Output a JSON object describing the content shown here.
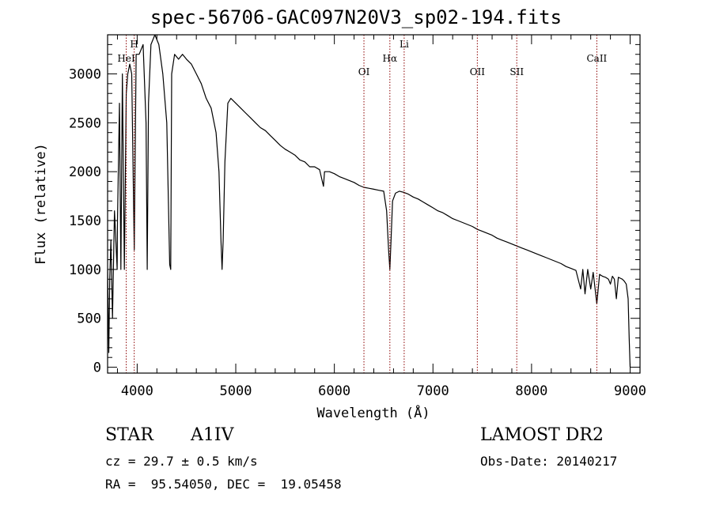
{
  "title": "spec-56706-GAC097N20V3_sp02-194.fits",
  "info": {
    "object_class": "STAR",
    "subclass": "A1IV",
    "survey": "LAMOST DR2",
    "redshift_text": "cz = 29.7 ± 0.5 km/s",
    "obs_date_text": "Obs-Date: 20140217",
    "coords_text": "RA =  95.54050, DEC =  19.05458"
  },
  "chart_data": {
    "type": "line",
    "title": "spec-56706-GAC097N20V3_sp02-194.fits",
    "xlabel": "Wavelength (Å)",
    "ylabel": "Flux (relative)",
    "xlim": [
      3700,
      9100
    ],
    "ylim": [
      -60,
      3400
    ],
    "xticks": [
      4000,
      5000,
      6000,
      7000,
      8000,
      9000
    ],
    "yticks": [
      0,
      500,
      1000,
      1500,
      2000,
      2500,
      3000
    ],
    "grid": false,
    "legend": "none",
    "line_color": "#000000",
    "marker_color": "#8b0000",
    "series": [
      {
        "x": [
          3700,
          3712,
          3722,
          3734,
          3750,
          3770,
          3797,
          3800,
          3820,
          3835,
          3850,
          3870,
          3889,
          3905,
          3925,
          3945,
          3970,
          3990,
          4020,
          4060,
          4090,
          4102,
          4115,
          4140,
          4180,
          4220,
          4260,
          4300,
          4330,
          4340,
          4350,
          4380,
          4420,
          4460,
          4500,
          4550,
          4600,
          4650,
          4700,
          4750,
          4800,
          4830,
          4850,
          4861,
          4872,
          4890,
          4920,
          4950,
          5000,
          5050,
          5100,
          5150,
          5200,
          5250,
          5300,
          5350,
          5400,
          5450,
          5500,
          5550,
          5600,
          5650,
          5700,
          5750,
          5800,
          5850,
          5890,
          5900,
          5950,
          6000,
          6050,
          6100,
          6150,
          6200,
          6250,
          6300,
          6350,
          6400,
          6450,
          6500,
          6530,
          6550,
          6563,
          6575,
          6590,
          6620,
          6660,
          6700,
          6750,
          6800,
          6850,
          6900,
          6950,
          7000,
          7050,
          7100,
          7150,
          7200,
          7250,
          7300,
          7350,
          7400,
          7450,
          7500,
          7550,
          7600,
          7650,
          7700,
          7750,
          7800,
          7850,
          7900,
          7950,
          8000,
          8050,
          8100,
          8150,
          8200,
          8250,
          8300,
          8350,
          8400,
          8450,
          8498,
          8520,
          8542,
          8570,
          8600,
          8625,
          8662,
          8690,
          8720,
          8750,
          8780,
          8800,
          8820,
          8840,
          8860,
          8880,
          8900,
          8920,
          8940,
          8960,
          8980,
          8990,
          9000
        ],
        "y": [
          1000,
          150,
          900,
          1300,
          500,
          1600,
          1000,
          1500,
          2700,
          1000,
          3000,
          1000,
          2800,
          3000,
          3100,
          3000,
          1200,
          3200,
          3200,
          3300,
          2500,
          1000,
          2700,
          3300,
          3400,
          3300,
          3000,
          2500,
          1050,
          1000,
          3000,
          3200,
          3150,
          3200,
          3150,
          3100,
          3000,
          2900,
          2750,
          2650,
          2400,
          2000,
          1300,
          1000,
          1300,
          2100,
          2700,
          2750,
          2700,
          2650,
          2600,
          2550,
          2500,
          2450,
          2420,
          2370,
          2320,
          2270,
          2230,
          2200,
          2170,
          2120,
          2100,
          2050,
          2050,
          2020,
          1850,
          2000,
          2000,
          1980,
          1950,
          1930,
          1910,
          1890,
          1860,
          1840,
          1830,
          1820,
          1810,
          1800,
          1600,
          1200,
          1000,
          1300,
          1700,
          1780,
          1800,
          1790,
          1770,
          1740,
          1720,
          1690,
          1660,
          1630,
          1600,
          1580,
          1550,
          1520,
          1500,
          1480,
          1460,
          1440,
          1410,
          1390,
          1370,
          1350,
          1320,
          1300,
          1280,
          1260,
          1240,
          1220,
          1200,
          1180,
          1160,
          1140,
          1120,
          1100,
          1080,
          1060,
          1030,
          1010,
          990,
          800,
          1000,
          750,
          1000,
          800,
          970,
          650,
          950,
          930,
          920,
          900,
          850,
          930,
          900,
          700,
          920,
          910,
          900,
          880,
          850,
          700,
          300,
          0
        ]
      }
    ],
    "lines": [
      {
        "name": "HeI",
        "wavelength": 3889,
        "label_row": 2
      },
      {
        "name": "H",
        "wavelength": 3970,
        "label_row": 1
      },
      {
        "name": "OI",
        "wavelength": 6300,
        "label_row": 3
      },
      {
        "name": "Hα",
        "wavelength": 6563,
        "label_row": 2
      },
      {
        "name": "Li",
        "wavelength": 6708,
        "label_row": 1
      },
      {
        "name": "OII",
        "wavelength": 7450,
        "label_row": 3
      },
      {
        "name": "SII",
        "wavelength": 7850,
        "label_row": 3
      },
      {
        "name": "CaII",
        "wavelength": 8662,
        "label_row": 2
      }
    ]
  }
}
